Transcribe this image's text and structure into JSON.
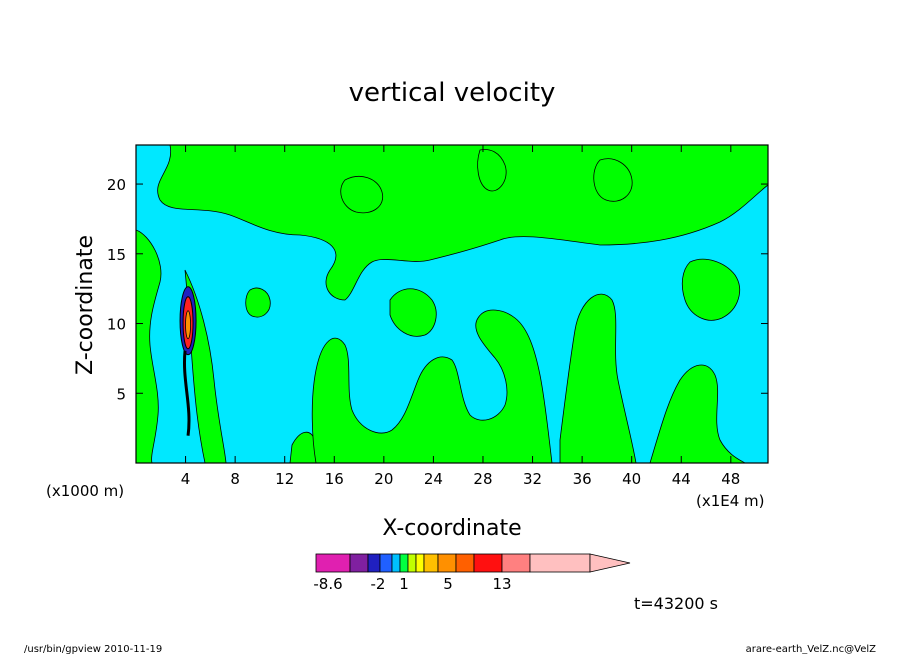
{
  "chart_data": {
    "type": "heatmap",
    "title": "vertical velocity",
    "xlabel": "X-coordinate",
    "ylabel": "Z-coordinate",
    "x_unit_left": "(x1000 m)",
    "x_unit_right": "(x1E4 m)",
    "xlim": [
      0,
      51
    ],
    "ylim": [
      0,
      22.8
    ],
    "x_ticks": [
      4,
      8,
      12,
      16,
      20,
      24,
      28,
      32,
      36,
      40,
      44,
      48
    ],
    "y_ticks": [
      5,
      10,
      15,
      20
    ],
    "colorbar": {
      "colors": [
        "#e020b0",
        "#8020a0",
        "#2020c0",
        "#2060ff",
        "#00c0ff",
        "#00ff40",
        "#c0ff00",
        "#ffff00",
        "#ffc000",
        "#ff9000",
        "#ff6000",
        "#ff1010",
        "#ff8080",
        "#ffc0c0"
      ],
      "labels": [
        "-8.6",
        "-2",
        "1",
        "5",
        "13"
      ]
    },
    "fill_colors": {
      "negative": "#00e8ff",
      "positive": "#00ff00",
      "strong_neg": "#2020c0",
      "strong_pos": "#ff2020"
    },
    "time_label": "t=43200 s"
  },
  "footer": {
    "left": "/usr/bin/gpview   2010-11-19",
    "right": "arare-earth_VelZ.nc@VelZ"
  }
}
